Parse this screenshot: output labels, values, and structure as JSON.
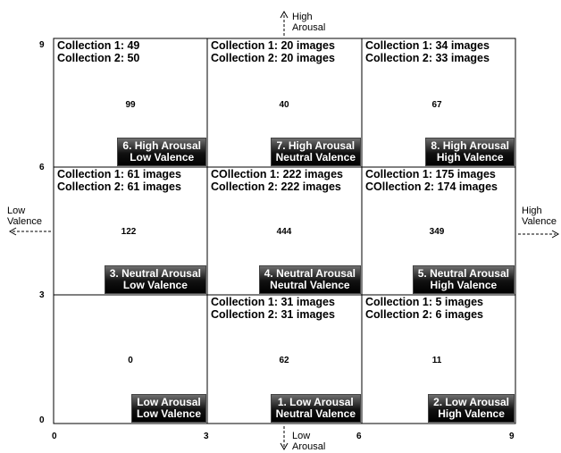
{
  "cells": [
    {
      "id": "cell-6",
      "c1": "Collection 1: 49",
      "c2": "Collection 2: 50",
      "total": "99",
      "badge_l1": "6. High Arousal",
      "badge_l2": "Low Valence"
    },
    {
      "id": "cell-7",
      "c1": "Collection 1: 20 images",
      "c2": "Collection 2: 20 images",
      "total": "40",
      "badge_l1": "7. High Arousal",
      "badge_l2": "Neutral Valence"
    },
    {
      "id": "cell-8",
      "c1": "Collection 1: 34 images",
      "c2": "Collection 2: 33 images",
      "total": "67",
      "badge_l1": "8. High Arousal",
      "badge_l2": "High Valence"
    },
    {
      "id": "cell-3",
      "c1": "Collection 1: 61 images",
      "c2": "Collection 2: 61 images",
      "total": "122",
      "badge_l1": "3. Neutral Arousal",
      "badge_l2": "Low Valence"
    },
    {
      "id": "cell-4",
      "c1": "COllection 1: 222 images",
      "c2": "Collection 2: 222 images",
      "total": "444",
      "badge_l1": "4. Neutral Arousal",
      "badge_l2": "Neutral Valence"
    },
    {
      "id": "cell-5",
      "c1": "Collection 1: 175 images",
      "c2": "COllection 2: 174 images",
      "total": "349",
      "badge_l1": "5. Neutral Arousal",
      "badge_l2": "High Valence"
    },
    {
      "id": "cell-0",
      "c1": "",
      "c2": "",
      "total": "0",
      "badge_l1": "Low Arousal",
      "badge_l2": "Low Valence"
    },
    {
      "id": "cell-1",
      "c1": "Collection 1: 31 images",
      "c2": "Collection 2: 31 images",
      "total": "62",
      "badge_l1": "1. Low Arousal",
      "badge_l2": "Neutral Valence"
    },
    {
      "id": "cell-2",
      "c1": "Collection 1: 5 images",
      "c2": "Collection 2: 6 images",
      "total": "11",
      "badge_l1": "2. Low Arousal",
      "badge_l2": "High Valence"
    }
  ],
  "x_ticks": [
    "0",
    "3",
    "6",
    "9"
  ],
  "y_ticks": [
    "0",
    "3",
    "6",
    "9"
  ],
  "axis_labels": {
    "high_arousal_1": "High",
    "high_arousal_2": "Arousal",
    "low_arousal_1": "Low",
    "low_arousal_2": "Arousal",
    "low_valence_1": "Low",
    "low_valence_2": "Valence",
    "high_valence_1": "High",
    "high_valence_2": "Valence"
  }
}
